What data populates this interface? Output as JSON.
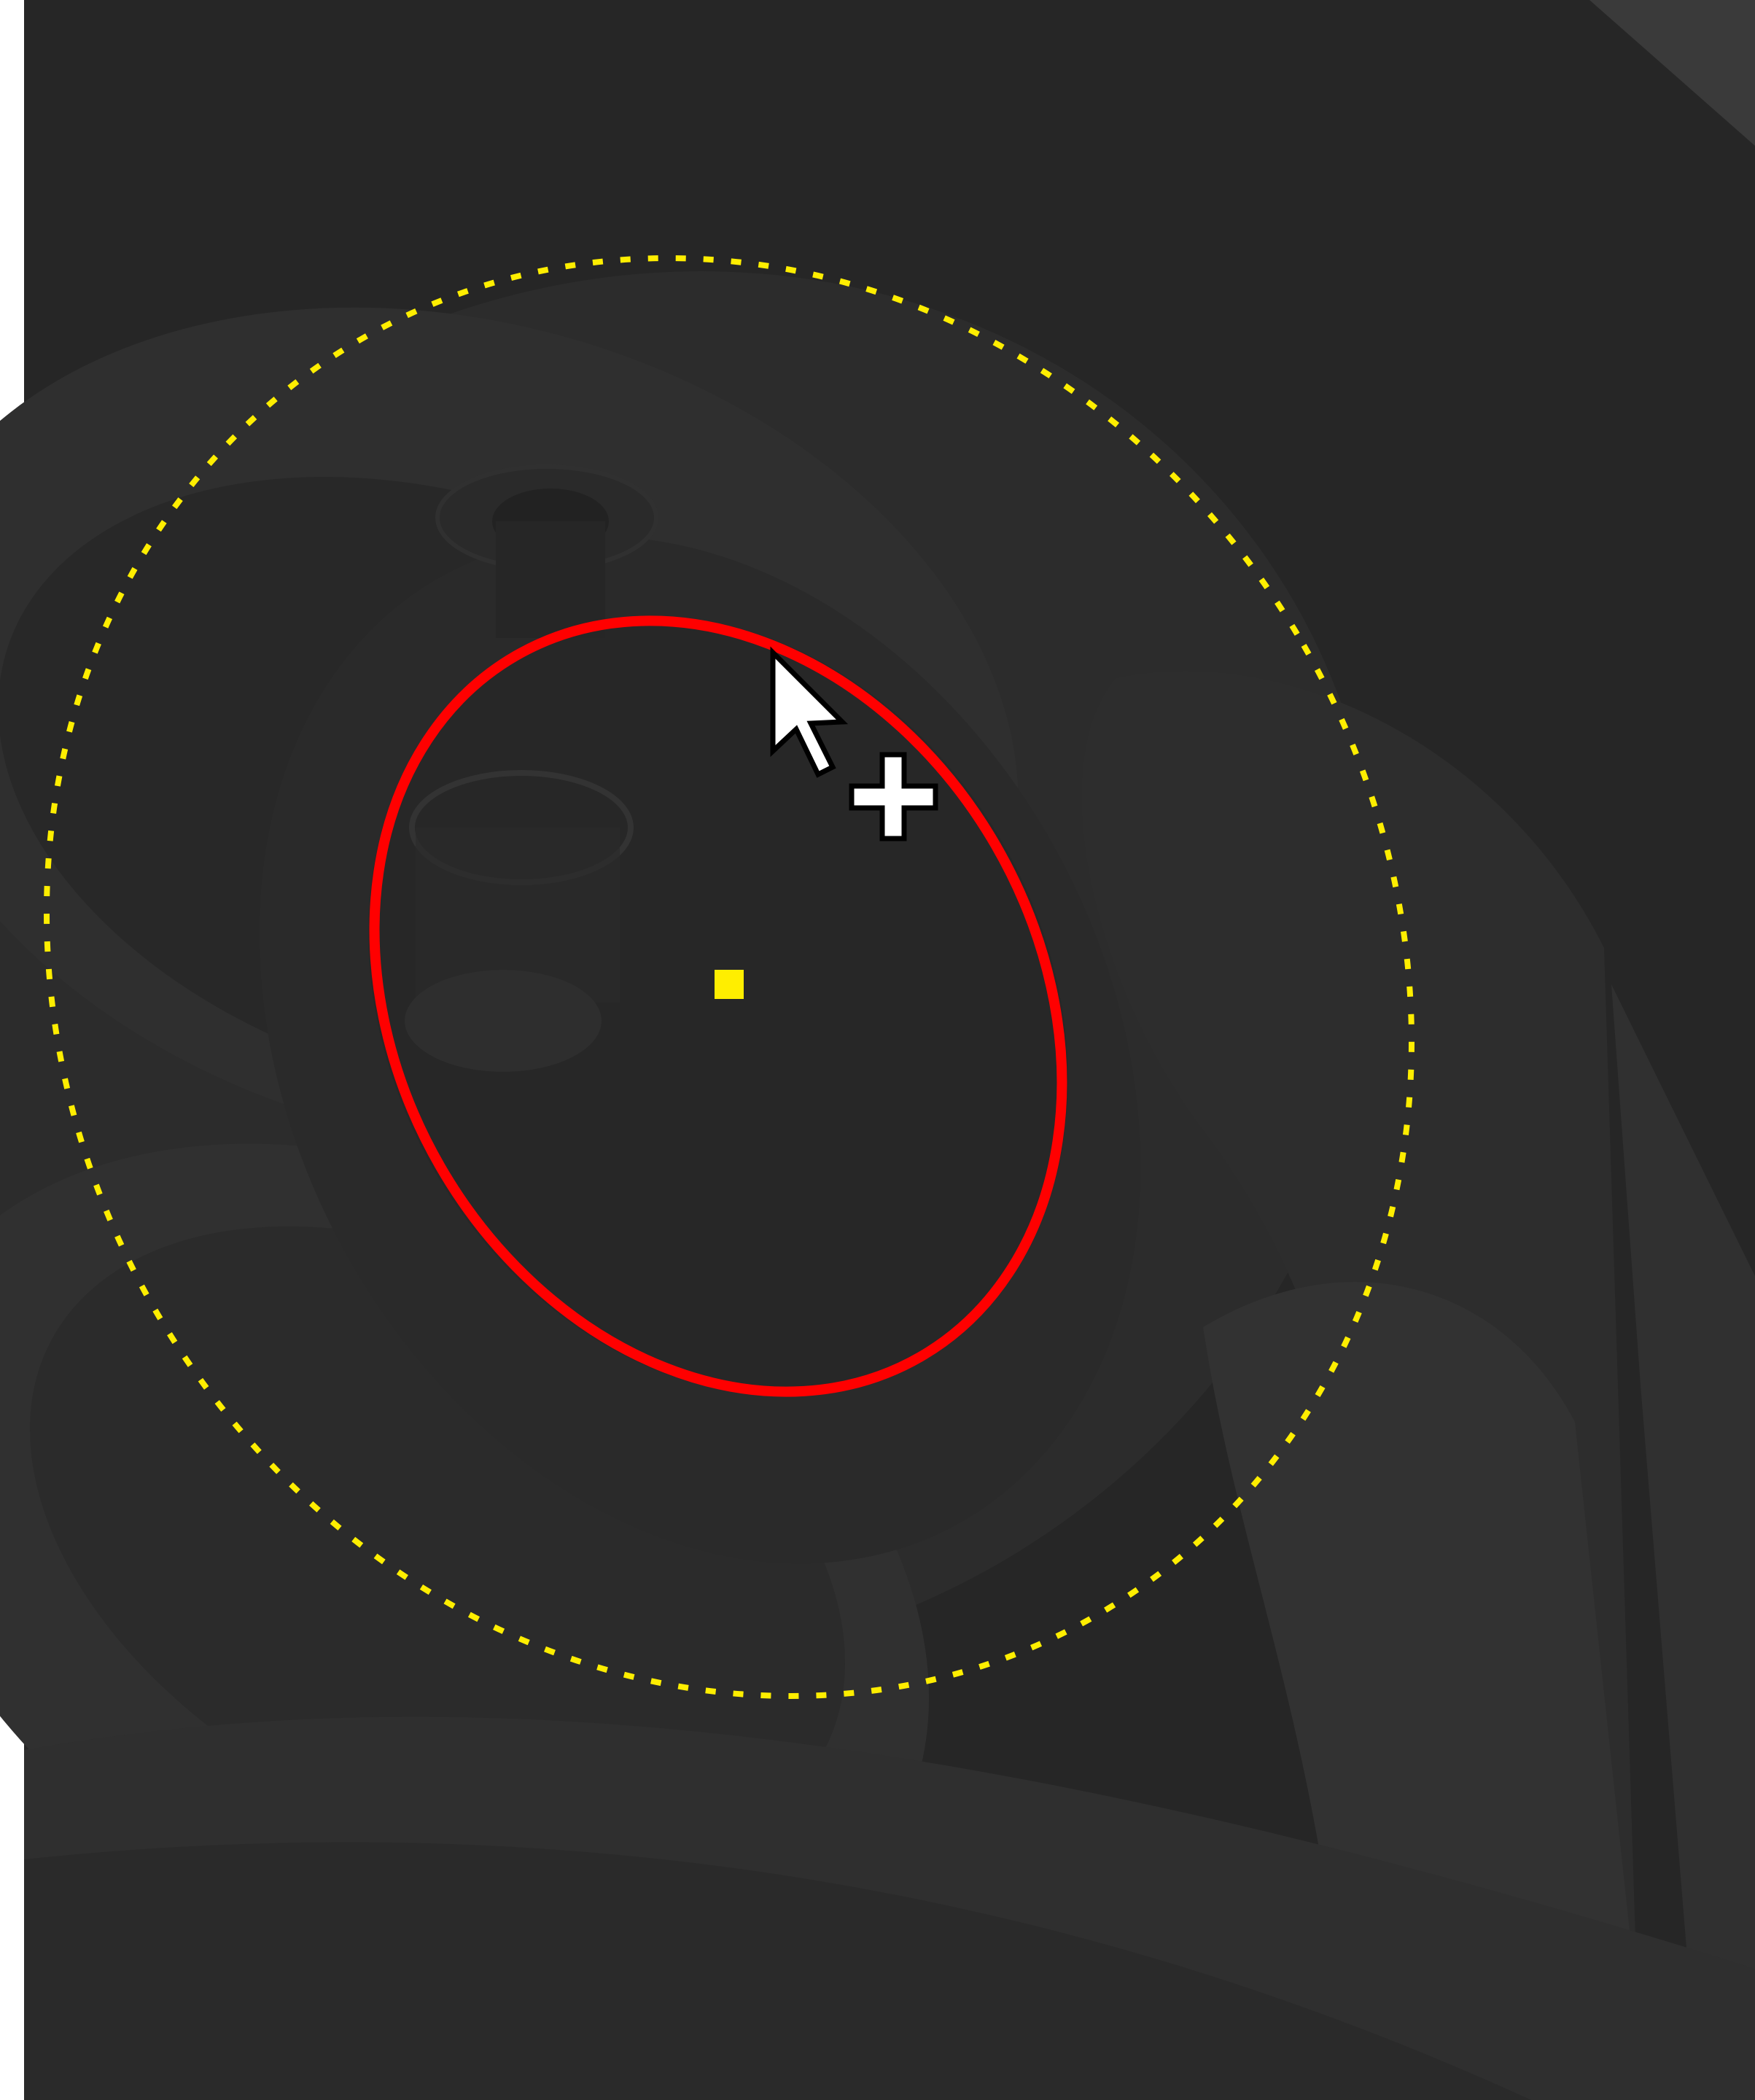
{
  "viewport": {
    "theme": "dark 3D viewport",
    "colors": {
      "background": "#262626",
      "frame_edge": "#ffffff",
      "surface_light": "#3a3a3a",
      "surface_mid": "#2f2f2f",
      "surface_dark": "#222222",
      "surface_edge": "#353535"
    }
  },
  "selection": {
    "falloff_ring_style": "dashed",
    "falloff_ring_color": "#ffee00",
    "brush_ring_color": "#ff0000",
    "center_marker_color": "#ffee00"
  },
  "cursor": {
    "pointer_icon": "arrow-pointer-icon",
    "crosshair_icon": "plus-crosshair-icon",
    "fill": "#ffffff",
    "outline": "#000000"
  }
}
